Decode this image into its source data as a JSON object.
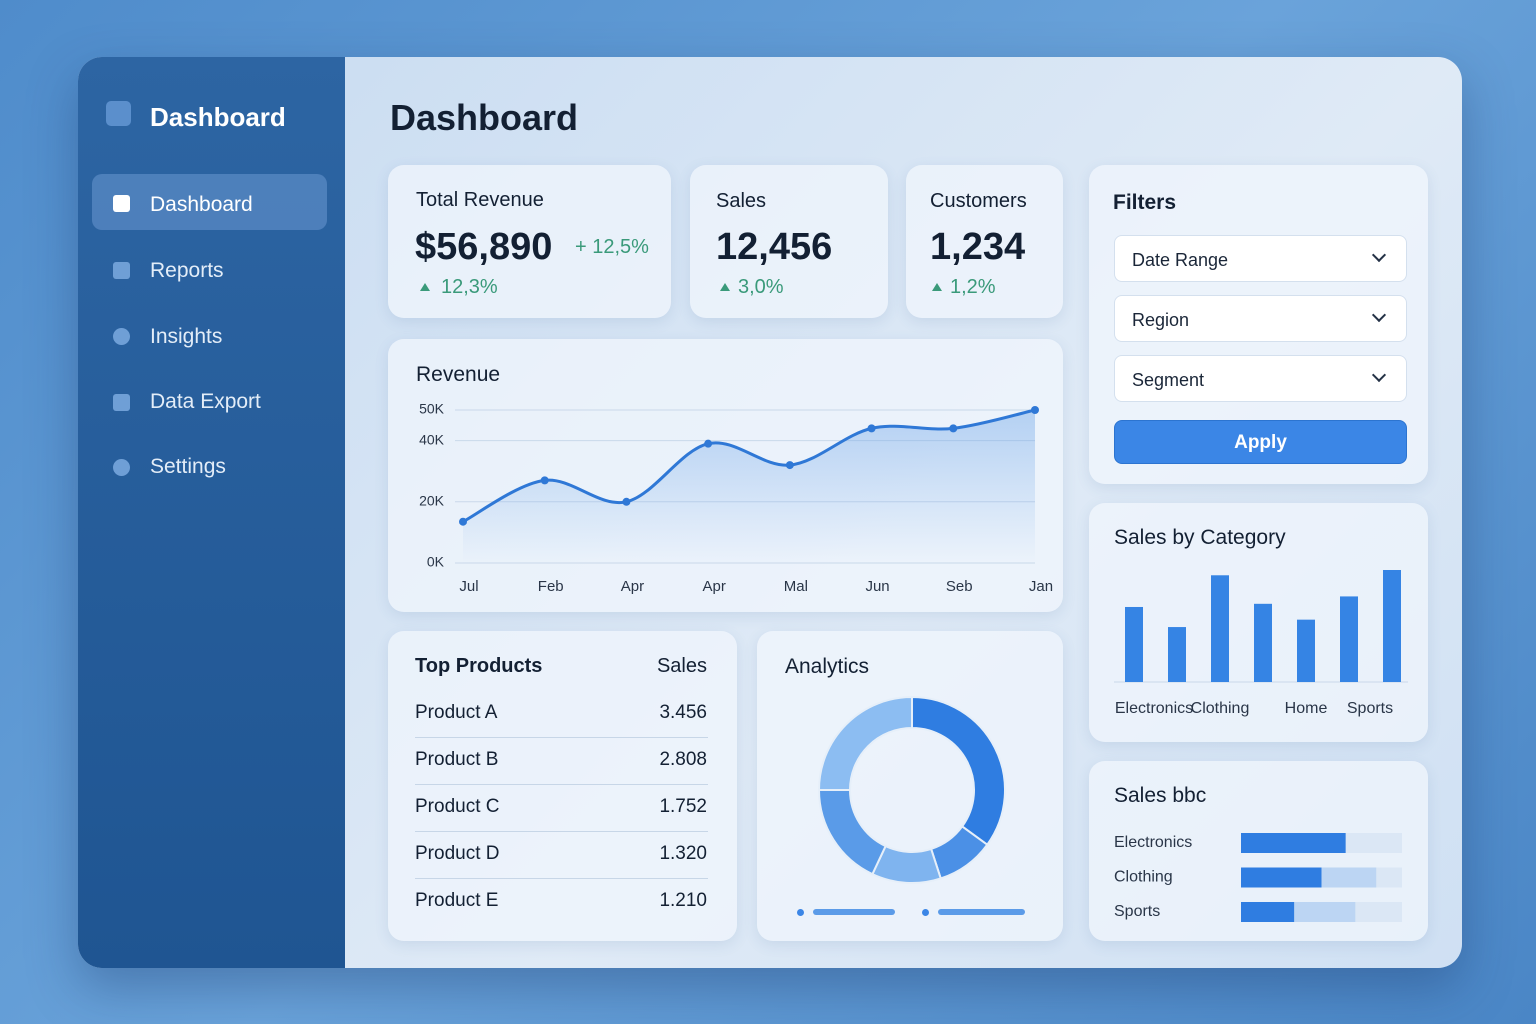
{
  "sidebar": {
    "brand": "Dashboard",
    "nav": [
      "Dashboard",
      "Reports",
      "Insights",
      "Data Export",
      "Settings"
    ]
  },
  "main_title": "Dashboard",
  "kpis": [
    {
      "label": "Total Revenue",
      "value": "$56,890",
      "change": "+ 12,5%",
      "trend": "12,3%"
    },
    {
      "label": "Sales",
      "value": "12,456",
      "trend": "3,0%"
    },
    {
      "label": "Customers",
      "value": "1,234",
      "trend": "1,2%"
    }
  ],
  "revenue_chart": {
    "type": "line",
    "title": "Revenue",
    "categories": [
      "Jul",
      "Feb",
      "Apr",
      "Apr",
      "Mal",
      "Jun",
      "Seb",
      "Jan"
    ],
    "values": [
      13500,
      27000,
      20000,
      39000,
      32000,
      44000,
      44000,
      50000
    ],
    "color": "#2f78d6",
    "ylim": [
      0,
      50000
    ],
    "yticks": [
      {
        "value": 0,
        "label": "0K"
      },
      {
        "value": 20000,
        "label": "20K"
      },
      {
        "value": 40000,
        "label": "40K"
      },
      {
        "value": 50000,
        "label": "50K"
      }
    ],
    "grid": true
  },
  "top_products": {
    "headers": [
      "Top Products",
      "Sales"
    ],
    "rows": [
      [
        "Product A",
        "3.456"
      ],
      [
        "Product B",
        "2.808"
      ],
      [
        "Product C",
        "1.752"
      ],
      [
        "Product D",
        "1.320"
      ],
      [
        "Product E",
        "1.210"
      ]
    ]
  },
  "analytics": {
    "type": "pie",
    "title": "Analytics",
    "values": [
      35,
      10,
      12,
      18,
      25
    ],
    "colors": [
      "#2f7de1",
      "#4b90e6",
      "#7fb4ef",
      "#5a9be8",
      "#8cbdf2"
    ]
  },
  "filters": {
    "title": "Filters",
    "dropdowns": [
      "Date Range",
      "Region",
      "Segment"
    ],
    "button": "Apply"
  },
  "sales_by_category": {
    "type": "bar",
    "title": "Sales by Category",
    "categories": [
      "Electronics",
      null,
      "Clothing",
      null,
      "Home",
      null,
      "Sports"
    ],
    "values": [
      71,
      52,
      101,
      74,
      59,
      81,
      106
    ],
    "color": "#3584e4"
  },
  "sales_bbc": {
    "type": "hbar",
    "title": "Sales bbc",
    "bars": [
      {
        "label": "Electronics",
        "value": 65,
        "secondary": null
      },
      {
        "label": "Clothing",
        "value": 50,
        "secondary": 84
      },
      {
        "label": "Sports",
        "value": 33,
        "secondary": 71
      }
    ],
    "color": "#2f7de1"
  }
}
